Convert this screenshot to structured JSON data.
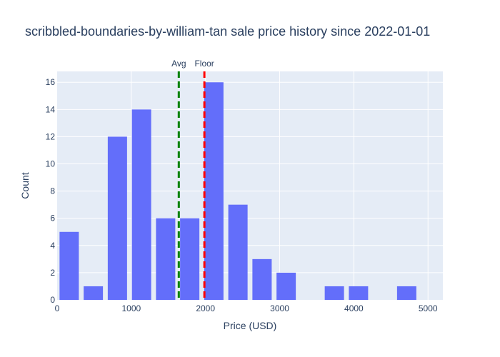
{
  "chart_data": {
    "type": "bar",
    "title": "scribbled-boundaries-by-william-tan sale price history since 2022-01-01",
    "xlabel": "Price (USD)",
    "ylabel": "Count",
    "xlim": [
      0,
      5200
    ],
    "ylim": [
      0,
      16.8
    ],
    "x_ticks": [
      0,
      1000,
      2000,
      3000,
      4000,
      5000
    ],
    "y_ticks": [
      0,
      2,
      4,
      6,
      8,
      10,
      12,
      14,
      16
    ],
    "bin_width": 325,
    "bins": [
      {
        "x0": 0,
        "x1": 325,
        "count": 5
      },
      {
        "x0": 325,
        "x1": 650,
        "count": 1
      },
      {
        "x0": 650,
        "x1": 975,
        "count": 12
      },
      {
        "x0": 975,
        "x1": 1300,
        "count": 14
      },
      {
        "x0": 1300,
        "x1": 1625,
        "count": 6
      },
      {
        "x0": 1625,
        "x1": 1950,
        "count": 6
      },
      {
        "x0": 1950,
        "x1": 2275,
        "count": 16
      },
      {
        "x0": 2275,
        "x1": 2600,
        "count": 7
      },
      {
        "x0": 2600,
        "x1": 2925,
        "count": 3
      },
      {
        "x0": 2925,
        "x1": 3250,
        "count": 2
      },
      {
        "x0": 3250,
        "x1": 3575,
        "count": 0
      },
      {
        "x0": 3575,
        "x1": 3900,
        "count": 1
      },
      {
        "x0": 3900,
        "x1": 4225,
        "count": 1
      },
      {
        "x0": 4225,
        "x1": 4550,
        "count": 0
      },
      {
        "x0": 4550,
        "x1": 4875,
        "count": 1
      },
      {
        "x0": 4875,
        "x1": 5200,
        "count": 0
      }
    ],
    "reference_lines": [
      {
        "label": "Avg",
        "x": 1640,
        "color": "#008000"
      },
      {
        "label": "Floor",
        "x": 1985,
        "color": "#ff0000"
      }
    ],
    "bar_color": "#636efa",
    "plot_bg": "#e5ecf6",
    "grid": true
  }
}
